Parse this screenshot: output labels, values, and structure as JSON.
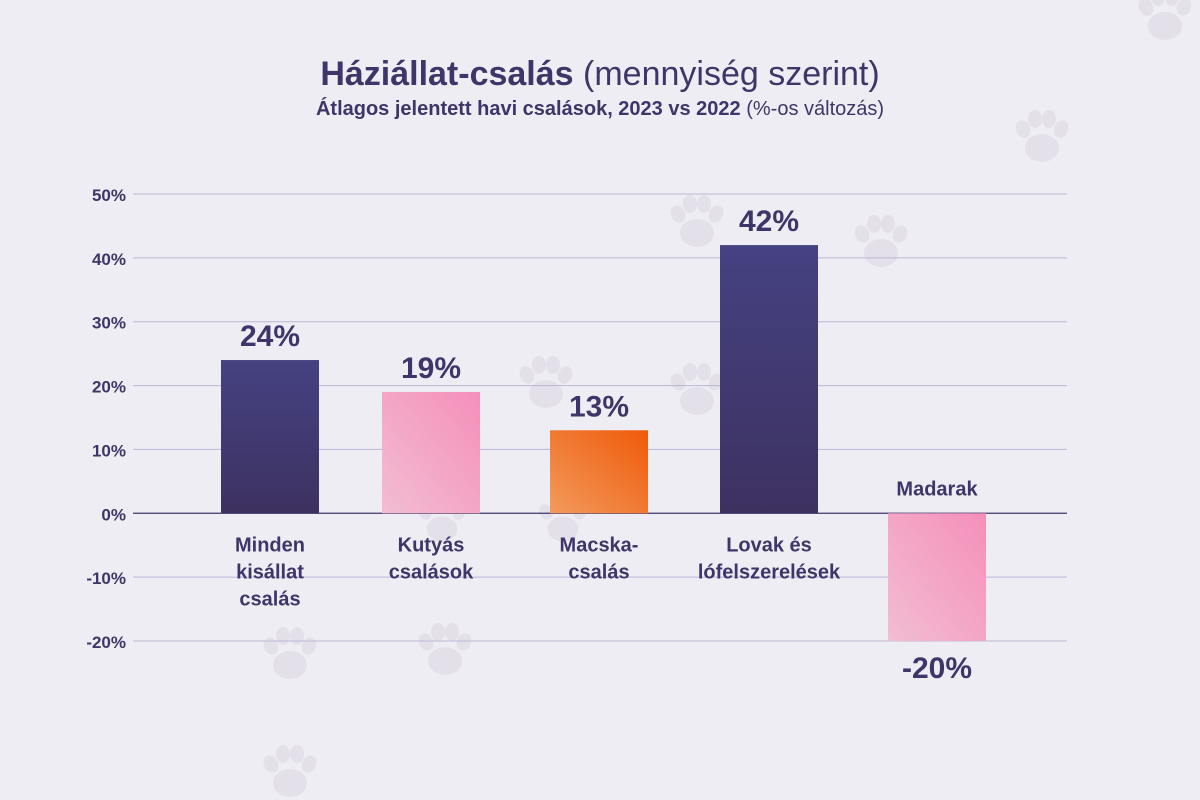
{
  "title": {
    "bold": "Háziállat-csalás",
    "light": "(mennyiség szerint)"
  },
  "subtitle": {
    "bold": "Átlagos jelentett havi csalások, 2023 vs 2022",
    "light": "(%-os változás)"
  },
  "colors": {
    "background": "#eeedf3",
    "text": "#3f3568",
    "grid": "#bcb6d6",
    "navy_top": "#454282",
    "navy_bottom": "#3d3160",
    "pink_top": "#f58fba",
    "pink_bottom": "#f2bdd3",
    "orange_top": "#ef5a0a",
    "orange_bottom": "#f29a5c",
    "paw": "#e3e0ea"
  },
  "decorations": [
    "paw-print-icon"
  ],
  "chart_data": {
    "type": "bar",
    "categories": [
      "Minden kisállat csalás",
      "Kutyás csalások",
      "Macska-csalás",
      "Lovak és lófelszerelések",
      "Madarak"
    ],
    "category_lines": [
      [
        "Minden",
        "kisállat",
        "csalás"
      ],
      [
        "Kutyás",
        "csalások"
      ],
      [
        "Macska-",
        "csalás"
      ],
      [
        "Lovak és",
        "lófelszerelések"
      ],
      [
        "Madarak"
      ]
    ],
    "values": [
      24,
      19,
      13,
      42,
      -20
    ],
    "value_labels": [
      "24%",
      "19%",
      "13%",
      "42%",
      "-20%"
    ],
    "bar_colors": [
      "navy",
      "pink",
      "orange",
      "navy",
      "pink"
    ],
    "ylim": [
      -20,
      50
    ],
    "yticks": [
      50,
      40,
      30,
      20,
      10,
      0,
      -10,
      -20
    ],
    "ytick_labels": [
      "50%",
      "40%",
      "30%",
      "20%",
      "10%",
      "0%",
      "-10%",
      "-20%"
    ],
    "grid": true,
    "xlabel": "",
    "ylabel": ""
  }
}
